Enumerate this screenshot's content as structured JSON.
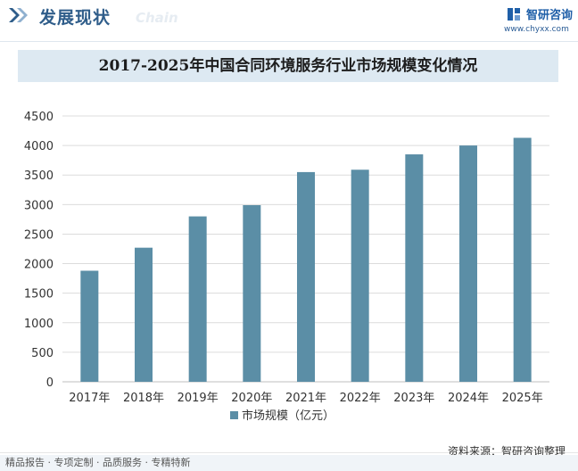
{
  "header": {
    "title": "发展现状",
    "subtitle_watermark": "Chain",
    "brand_name": "智研咨询",
    "brand_url": "www.chyxx.com"
  },
  "chart_data": {
    "type": "bar",
    "title": "2017-2025年中国合同环境服务行业市场规模变化情况",
    "categories": [
      "2017年",
      "2018年",
      "2019年",
      "2020年",
      "2021年",
      "2022年",
      "2023年",
      "2024年",
      "2025年"
    ],
    "series": [
      {
        "name": "市场规模（亿元）",
        "values": [
          1880,
          2270,
          2800,
          2990,
          3550,
          3590,
          3850,
          4000,
          4130
        ]
      }
    ],
    "ylim": [
      0,
      4500
    ],
    "yticks": [
      0,
      500,
      1000,
      1500,
      2000,
      2500,
      3000,
      3500,
      4000,
      4500
    ],
    "xlabel": "",
    "ylabel": "",
    "grid": true,
    "legend": "bottom-center",
    "bar_color": "#5b8ea6"
  },
  "footer": {
    "source": "资料来源：智研咨询整理",
    "tagline": "精品报告 · 专项定制 · 品质服务 · 专精特新"
  }
}
